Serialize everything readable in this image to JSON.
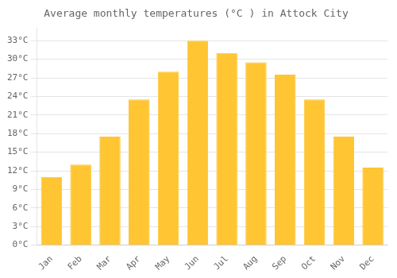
{
  "chart_data": {
    "type": "bar",
    "title": "Average monthly temperatures (°C ) in Attock City",
    "categories": [
      "Jan",
      "Feb",
      "Mar",
      "Apr",
      "May",
      "Jun",
      "Jul",
      "Aug",
      "Sep",
      "Oct",
      "Nov",
      "Dec"
    ],
    "values": [
      11,
      13,
      17.5,
      23.5,
      28,
      33,
      31,
      29.5,
      27.5,
      23.5,
      17.5,
      12.5
    ],
    "color": "#FFC532",
    "ylim": [
      0,
      35
    ],
    "yticks": [
      {
        "value": 0,
        "label": "0°C"
      },
      {
        "value": 3,
        "label": "3°C"
      },
      {
        "value": 6,
        "label": "6°C"
      },
      {
        "value": 9,
        "label": "9°C"
      },
      {
        "value": 12,
        "label": "12°C"
      },
      {
        "value": 15,
        "label": "15°C"
      },
      {
        "value": 18,
        "label": "18°C"
      },
      {
        "value": 21,
        "label": "21°C"
      },
      {
        "value": 24,
        "label": "24°C"
      },
      {
        "value": 27,
        "label": "27°C"
      },
      {
        "value": 30,
        "label": "30°C"
      },
      {
        "value": 33,
        "label": "33°C"
      }
    ],
    "grid": true
  }
}
